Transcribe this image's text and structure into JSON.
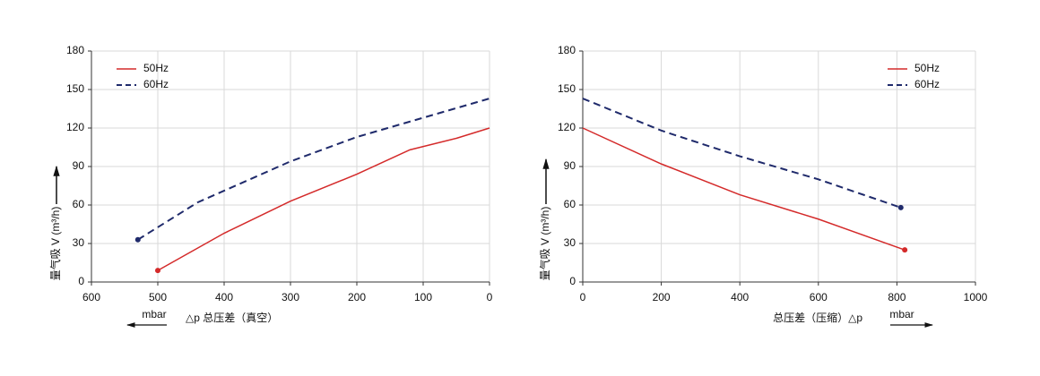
{
  "chart_data": [
    {
      "type": "line",
      "ylabel": "量气吸 V (m³/h)",
      "xlabel": "△p 总压差（真空）",
      "xunit": "mbar",
      "xlim": [
        600,
        0
      ],
      "xticks": [
        600,
        500,
        400,
        300,
        200,
        100,
        0
      ],
      "ylim": [
        0,
        180
      ],
      "yticks": [
        0,
        30,
        60,
        90,
        120,
        150,
        180
      ],
      "grid": true,
      "legend": "top-left",
      "series": [
        {
          "name": "50Hz",
          "color": "#d42a2a",
          "dash": false,
          "x": [
            500,
            400,
            300,
            200,
            120,
            50,
            0
          ],
          "values": [
            9,
            38,
            63,
            84,
            103,
            112,
            120
          ]
        },
        {
          "name": "60Hz",
          "color": "#1f2a6b",
          "dash": true,
          "x": [
            530,
            440,
            300,
            200,
            100,
            0
          ],
          "values": [
            33,
            62,
            94,
            113,
            128,
            143
          ]
        }
      ]
    },
    {
      "type": "line",
      "ylabel": "量气吸 V (m³/h)",
      "xlabel": "总压差（压缩）△p",
      "xunit": "mbar",
      "xlim": [
        0,
        1000
      ],
      "xticks": [
        0,
        200,
        400,
        600,
        800,
        1000
      ],
      "ylim": [
        0,
        180
      ],
      "yticks": [
        0,
        30,
        60,
        90,
        120,
        150,
        180
      ],
      "grid": true,
      "legend": "top-right",
      "series": [
        {
          "name": "50Hz",
          "color": "#d42a2a",
          "dash": false,
          "x": [
            0,
            200,
            400,
            600,
            820
          ],
          "values": [
            120,
            92,
            68,
            49,
            25
          ]
        },
        {
          "name": "60Hz",
          "color": "#1f2a6b",
          "dash": true,
          "x": [
            0,
            200,
            400,
            600,
            810
          ],
          "values": [
            143,
            118,
            98,
            80,
            58
          ]
        }
      ]
    }
  ]
}
